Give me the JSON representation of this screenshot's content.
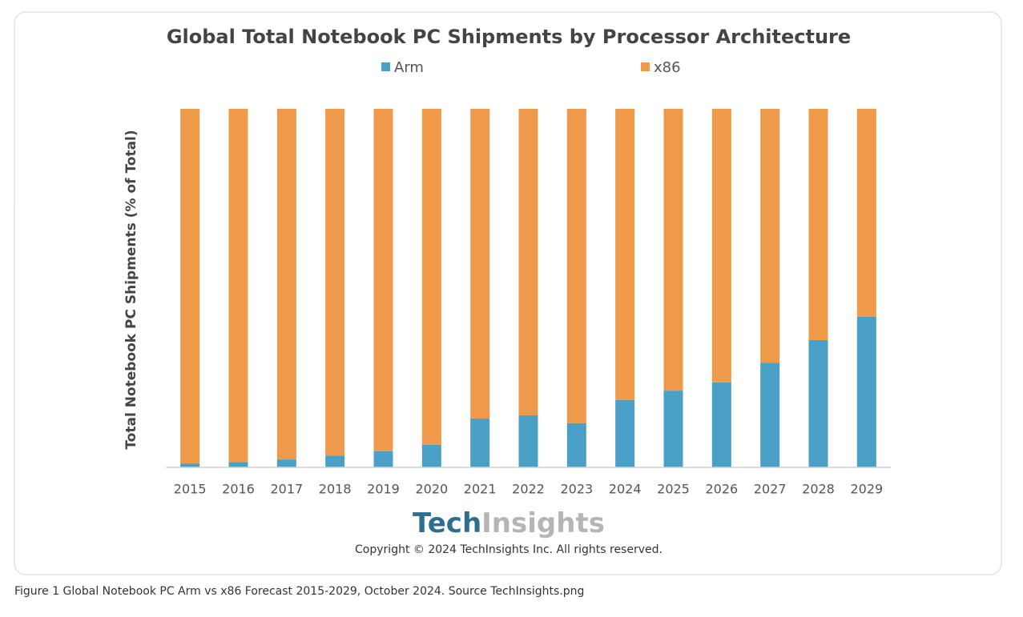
{
  "chart_data": {
    "type": "stacked-bar",
    "title": "Global Total Notebook PC Shipments by Processor Architecture",
    "y_label": "Total Notebook PC Shipments (% of Total)",
    "categories": [
      "2015",
      "2016",
      "2017",
      "2018",
      "2019",
      "2020",
      "2021",
      "2022",
      "2023",
      "2024",
      "2025",
      "2026",
      "2027",
      "2028",
      "2029"
    ],
    "series": [
      {
        "name": "Arm",
        "color": "#4a9fc6",
        "values": [
          1,
          1.5,
          2.2,
          3.3,
          4.5,
          6.3,
          13.6,
          14.5,
          12.3,
          18.8,
          21.4,
          23.7,
          29.2,
          35.5,
          42
        ]
      },
      {
        "name": "x86",
        "color": "#ee9a4a",
        "values": [
          99,
          98.5,
          97.8,
          96.7,
          95.5,
          93.7,
          86.4,
          85.5,
          87.7,
          81.2,
          78.6,
          76.3,
          70.8,
          64.5,
          58
        ]
      }
    ],
    "ylim": [
      0,
      100
    ]
  },
  "logo": {
    "first": "Tech",
    "second": "Insights"
  },
  "copyright": "Copyright © 2024 TechInsights Inc.  All rights reserved.",
  "caption": "Figure 1 Global Notebook PC Arm vs x86 Forecast 2015-2029, October 2024. Source TechInsights.png"
}
